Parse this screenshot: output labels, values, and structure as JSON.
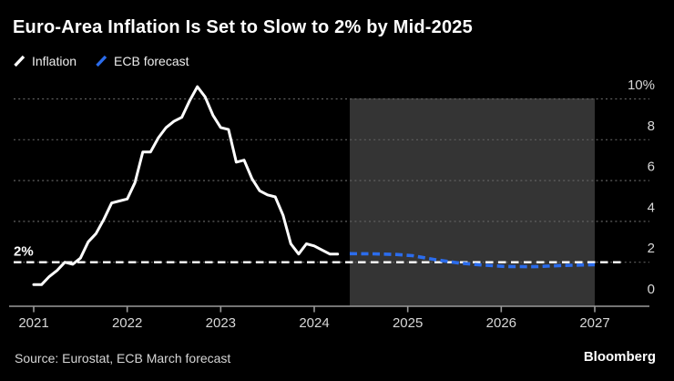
{
  "title": "Euro-Area Inflation Is Set to Slow to 2% by Mid-2025",
  "legend": [
    {
      "label": "Inflation",
      "color": "#ffffff"
    },
    {
      "label": "ECB forecast",
      "color": "#2b6cec"
    }
  ],
  "source": "Source: Eurostat, ECB March forecast",
  "brand": "Bloomberg",
  "colors": {
    "background": "#000000",
    "inflation_line": "#ffffff",
    "forecast_line": "#2b6cec",
    "forecast_region": "#343434",
    "gridline": "#606060",
    "axis": "#9a9a9a",
    "tick_label": "#d8d8d8",
    "reference_line": "#ffffff"
  },
  "chart_data": {
    "type": "line",
    "title": "Euro-Area Inflation Is Set to Slow to 2% by Mid-2025",
    "xlabel": "",
    "ylabel": "",
    "xlim": [
      2020.78,
      2027.58
    ],
    "ylim": [
      0,
      10.8
    ],
    "grid": "dotted-horizontal",
    "legend_position": "top-left",
    "x_ticks": [
      "2021",
      "2022",
      "2023",
      "2024",
      "2025",
      "2026",
      "2027"
    ],
    "x_tick_values": [
      2021,
      2022,
      2023,
      2024,
      2025,
      2026,
      2027
    ],
    "y_ticks": [
      "10%",
      "8",
      "6",
      "4",
      "2",
      "0"
    ],
    "y_tick_values": [
      10,
      8,
      6,
      4,
      2,
      0
    ],
    "reference_line": {
      "value": 2,
      "label": "2%"
    },
    "forecast_region": {
      "x_start": 2024.38,
      "x_end": 2027.0
    },
    "series": [
      {
        "name": "Inflation",
        "style": "solid",
        "color": "#ffffff",
        "x_start": 2021.0,
        "x_step_months": 1,
        "values": [
          0.9,
          0.9,
          1.3,
          1.6,
          2.0,
          1.9,
          2.2,
          3.0,
          3.4,
          4.1,
          4.9,
          5.0,
          5.1,
          5.9,
          7.4,
          7.4,
          8.1,
          8.6,
          8.9,
          9.1,
          9.9,
          10.6,
          10.1,
          9.2,
          8.6,
          8.5,
          6.9,
          7.0,
          6.1,
          5.5,
          5.3,
          5.2,
          4.3,
          2.9,
          2.4,
          2.9,
          2.8,
          2.6,
          2.4,
          2.4
        ]
      },
      {
        "name": "ECB forecast",
        "style": "dashed",
        "color": "#2b6cec",
        "points": [
          [
            2024.38,
            2.42
          ],
          [
            2024.62,
            2.41
          ],
          [
            2024.88,
            2.38
          ],
          [
            2025.05,
            2.32
          ],
          [
            2025.3,
            2.12
          ],
          [
            2025.55,
            1.96
          ],
          [
            2025.8,
            1.86
          ],
          [
            2026.05,
            1.79
          ],
          [
            2026.35,
            1.78
          ],
          [
            2026.65,
            1.84
          ],
          [
            2027.0,
            1.88
          ]
        ]
      }
    ]
  }
}
